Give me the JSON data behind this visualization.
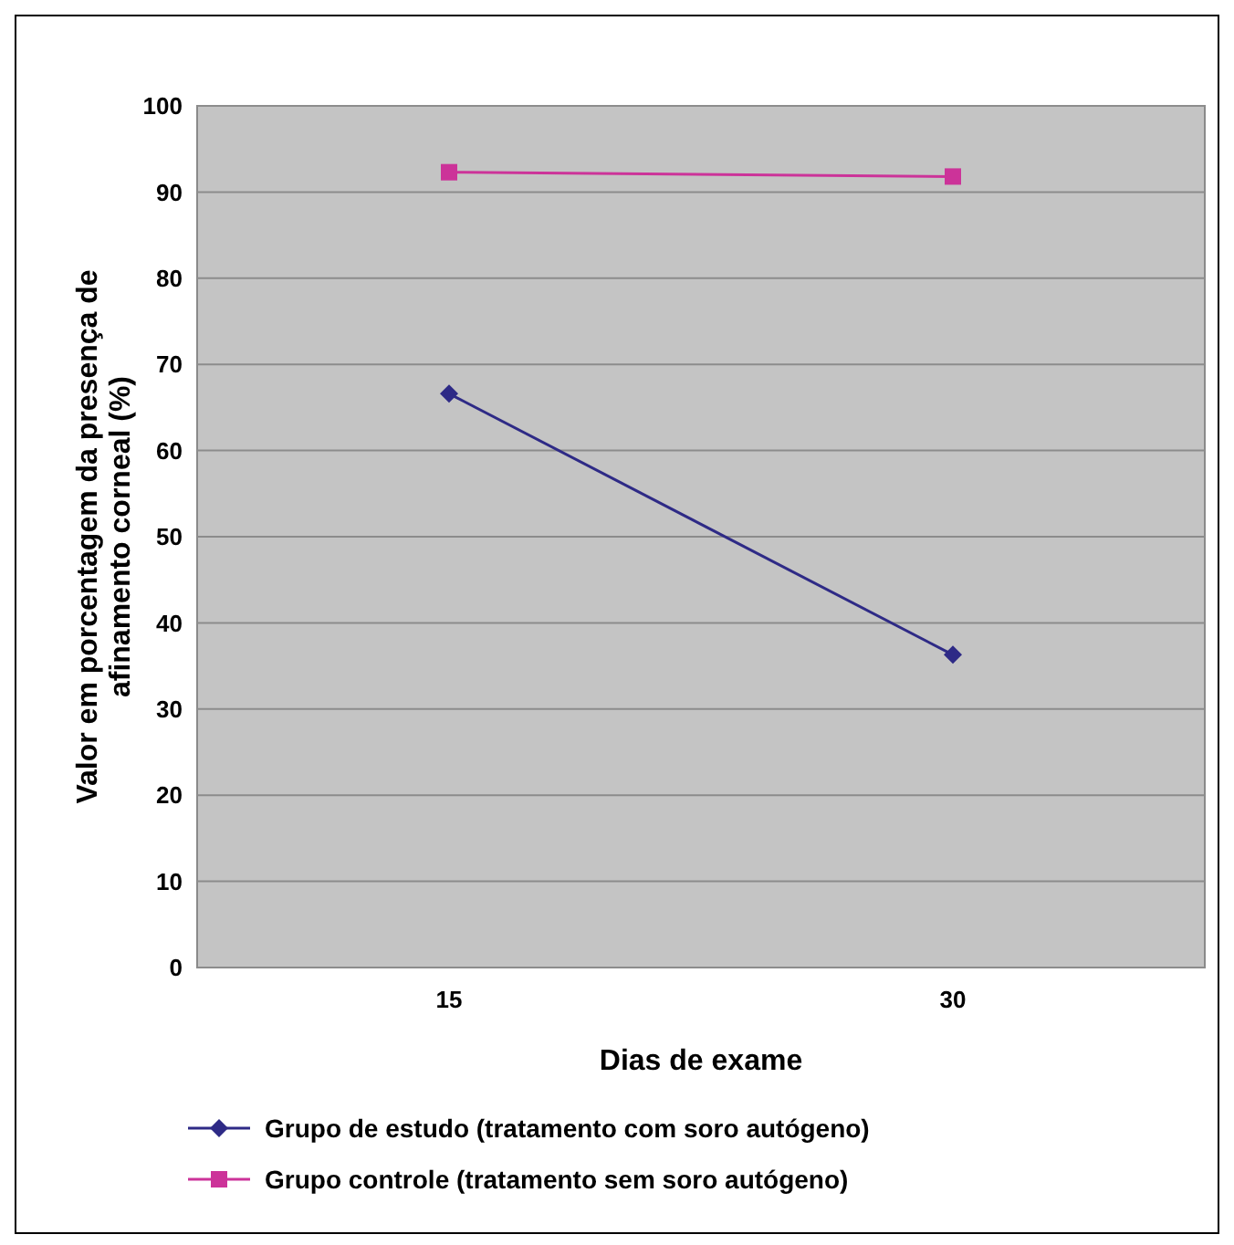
{
  "chart_data": {
    "type": "line",
    "xlabel": "Dias de exame",
    "ylabel": "Valor em porcentagem da presença de afinamento corneal (%)",
    "categories": [
      "15",
      "30"
    ],
    "ylim": [
      0,
      100
    ],
    "yticks": [
      0,
      10,
      20,
      30,
      40,
      50,
      60,
      70,
      80,
      90,
      100
    ],
    "grid": "y",
    "legend": "bottom",
    "series": [
      {
        "name": "Grupo de estudo (tratamento com soro autógeno)",
        "color": "#2e2a86",
        "values": [
          66.6,
          36.3
        ],
        "marker": "diamond"
      },
      {
        "name": "Grupo controle (tratamento sem soro autógeno)",
        "color": "#cc3399",
        "values": [
          92.3,
          91.8
        ],
        "marker": "square"
      }
    ]
  }
}
